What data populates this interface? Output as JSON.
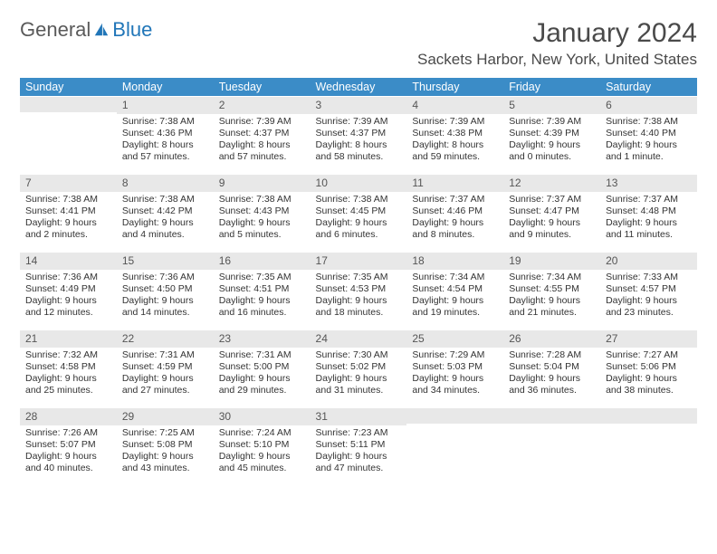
{
  "logo": {
    "text1": "General",
    "text2": "Blue"
  },
  "title": "January 2024",
  "location": "Sackets Harbor, New York, United States",
  "weekdays": [
    "Sunday",
    "Monday",
    "Tuesday",
    "Wednesday",
    "Thursday",
    "Friday",
    "Saturday"
  ],
  "colors": {
    "header_bg": "#3b8cc7",
    "header_text": "#ffffff",
    "daynum_bg": "#e8e8e8",
    "text": "#333333",
    "logo_blue": "#2176b8"
  },
  "grid": [
    [
      {
        "empty": true
      },
      {
        "n": "1",
        "sunrise": "Sunrise: 7:38 AM",
        "sunset": "Sunset: 4:36 PM",
        "daylight": "Daylight: 8 hours and 57 minutes."
      },
      {
        "n": "2",
        "sunrise": "Sunrise: 7:39 AM",
        "sunset": "Sunset: 4:37 PM",
        "daylight": "Daylight: 8 hours and 57 minutes."
      },
      {
        "n": "3",
        "sunrise": "Sunrise: 7:39 AM",
        "sunset": "Sunset: 4:37 PM",
        "daylight": "Daylight: 8 hours and 58 minutes."
      },
      {
        "n": "4",
        "sunrise": "Sunrise: 7:39 AM",
        "sunset": "Sunset: 4:38 PM",
        "daylight": "Daylight: 8 hours and 59 minutes."
      },
      {
        "n": "5",
        "sunrise": "Sunrise: 7:39 AM",
        "sunset": "Sunset: 4:39 PM",
        "daylight": "Daylight: 9 hours and 0 minutes."
      },
      {
        "n": "6",
        "sunrise": "Sunrise: 7:38 AM",
        "sunset": "Sunset: 4:40 PM",
        "daylight": "Daylight: 9 hours and 1 minute."
      }
    ],
    [
      {
        "n": "7",
        "sunrise": "Sunrise: 7:38 AM",
        "sunset": "Sunset: 4:41 PM",
        "daylight": "Daylight: 9 hours and 2 minutes."
      },
      {
        "n": "8",
        "sunrise": "Sunrise: 7:38 AM",
        "sunset": "Sunset: 4:42 PM",
        "daylight": "Daylight: 9 hours and 4 minutes."
      },
      {
        "n": "9",
        "sunrise": "Sunrise: 7:38 AM",
        "sunset": "Sunset: 4:43 PM",
        "daylight": "Daylight: 9 hours and 5 minutes."
      },
      {
        "n": "10",
        "sunrise": "Sunrise: 7:38 AM",
        "sunset": "Sunset: 4:45 PM",
        "daylight": "Daylight: 9 hours and 6 minutes."
      },
      {
        "n": "11",
        "sunrise": "Sunrise: 7:37 AM",
        "sunset": "Sunset: 4:46 PM",
        "daylight": "Daylight: 9 hours and 8 minutes."
      },
      {
        "n": "12",
        "sunrise": "Sunrise: 7:37 AM",
        "sunset": "Sunset: 4:47 PM",
        "daylight": "Daylight: 9 hours and 9 minutes."
      },
      {
        "n": "13",
        "sunrise": "Sunrise: 7:37 AM",
        "sunset": "Sunset: 4:48 PM",
        "daylight": "Daylight: 9 hours and 11 minutes."
      }
    ],
    [
      {
        "n": "14",
        "sunrise": "Sunrise: 7:36 AM",
        "sunset": "Sunset: 4:49 PM",
        "daylight": "Daylight: 9 hours and 12 minutes."
      },
      {
        "n": "15",
        "sunrise": "Sunrise: 7:36 AM",
        "sunset": "Sunset: 4:50 PM",
        "daylight": "Daylight: 9 hours and 14 minutes."
      },
      {
        "n": "16",
        "sunrise": "Sunrise: 7:35 AM",
        "sunset": "Sunset: 4:51 PM",
        "daylight": "Daylight: 9 hours and 16 minutes."
      },
      {
        "n": "17",
        "sunrise": "Sunrise: 7:35 AM",
        "sunset": "Sunset: 4:53 PM",
        "daylight": "Daylight: 9 hours and 18 minutes."
      },
      {
        "n": "18",
        "sunrise": "Sunrise: 7:34 AM",
        "sunset": "Sunset: 4:54 PM",
        "daylight": "Daylight: 9 hours and 19 minutes."
      },
      {
        "n": "19",
        "sunrise": "Sunrise: 7:34 AM",
        "sunset": "Sunset: 4:55 PM",
        "daylight": "Daylight: 9 hours and 21 minutes."
      },
      {
        "n": "20",
        "sunrise": "Sunrise: 7:33 AM",
        "sunset": "Sunset: 4:57 PM",
        "daylight": "Daylight: 9 hours and 23 minutes."
      }
    ],
    [
      {
        "n": "21",
        "sunrise": "Sunrise: 7:32 AM",
        "sunset": "Sunset: 4:58 PM",
        "daylight": "Daylight: 9 hours and 25 minutes."
      },
      {
        "n": "22",
        "sunrise": "Sunrise: 7:31 AM",
        "sunset": "Sunset: 4:59 PM",
        "daylight": "Daylight: 9 hours and 27 minutes."
      },
      {
        "n": "23",
        "sunrise": "Sunrise: 7:31 AM",
        "sunset": "Sunset: 5:00 PM",
        "daylight": "Daylight: 9 hours and 29 minutes."
      },
      {
        "n": "24",
        "sunrise": "Sunrise: 7:30 AM",
        "sunset": "Sunset: 5:02 PM",
        "daylight": "Daylight: 9 hours and 31 minutes."
      },
      {
        "n": "25",
        "sunrise": "Sunrise: 7:29 AM",
        "sunset": "Sunset: 5:03 PM",
        "daylight": "Daylight: 9 hours and 34 minutes."
      },
      {
        "n": "26",
        "sunrise": "Sunrise: 7:28 AM",
        "sunset": "Sunset: 5:04 PM",
        "daylight": "Daylight: 9 hours and 36 minutes."
      },
      {
        "n": "27",
        "sunrise": "Sunrise: 7:27 AM",
        "sunset": "Sunset: 5:06 PM",
        "daylight": "Daylight: 9 hours and 38 minutes."
      }
    ],
    [
      {
        "n": "28",
        "sunrise": "Sunrise: 7:26 AM",
        "sunset": "Sunset: 5:07 PM",
        "daylight": "Daylight: 9 hours and 40 minutes."
      },
      {
        "n": "29",
        "sunrise": "Sunrise: 7:25 AM",
        "sunset": "Sunset: 5:08 PM",
        "daylight": "Daylight: 9 hours and 43 minutes."
      },
      {
        "n": "30",
        "sunrise": "Sunrise: 7:24 AM",
        "sunset": "Sunset: 5:10 PM",
        "daylight": "Daylight: 9 hours and 45 minutes."
      },
      {
        "n": "31",
        "sunrise": "Sunrise: 7:23 AM",
        "sunset": "Sunset: 5:11 PM",
        "daylight": "Daylight: 9 hours and 47 minutes."
      },
      {
        "empty": true
      },
      {
        "empty": true
      },
      {
        "empty": true
      }
    ]
  ]
}
